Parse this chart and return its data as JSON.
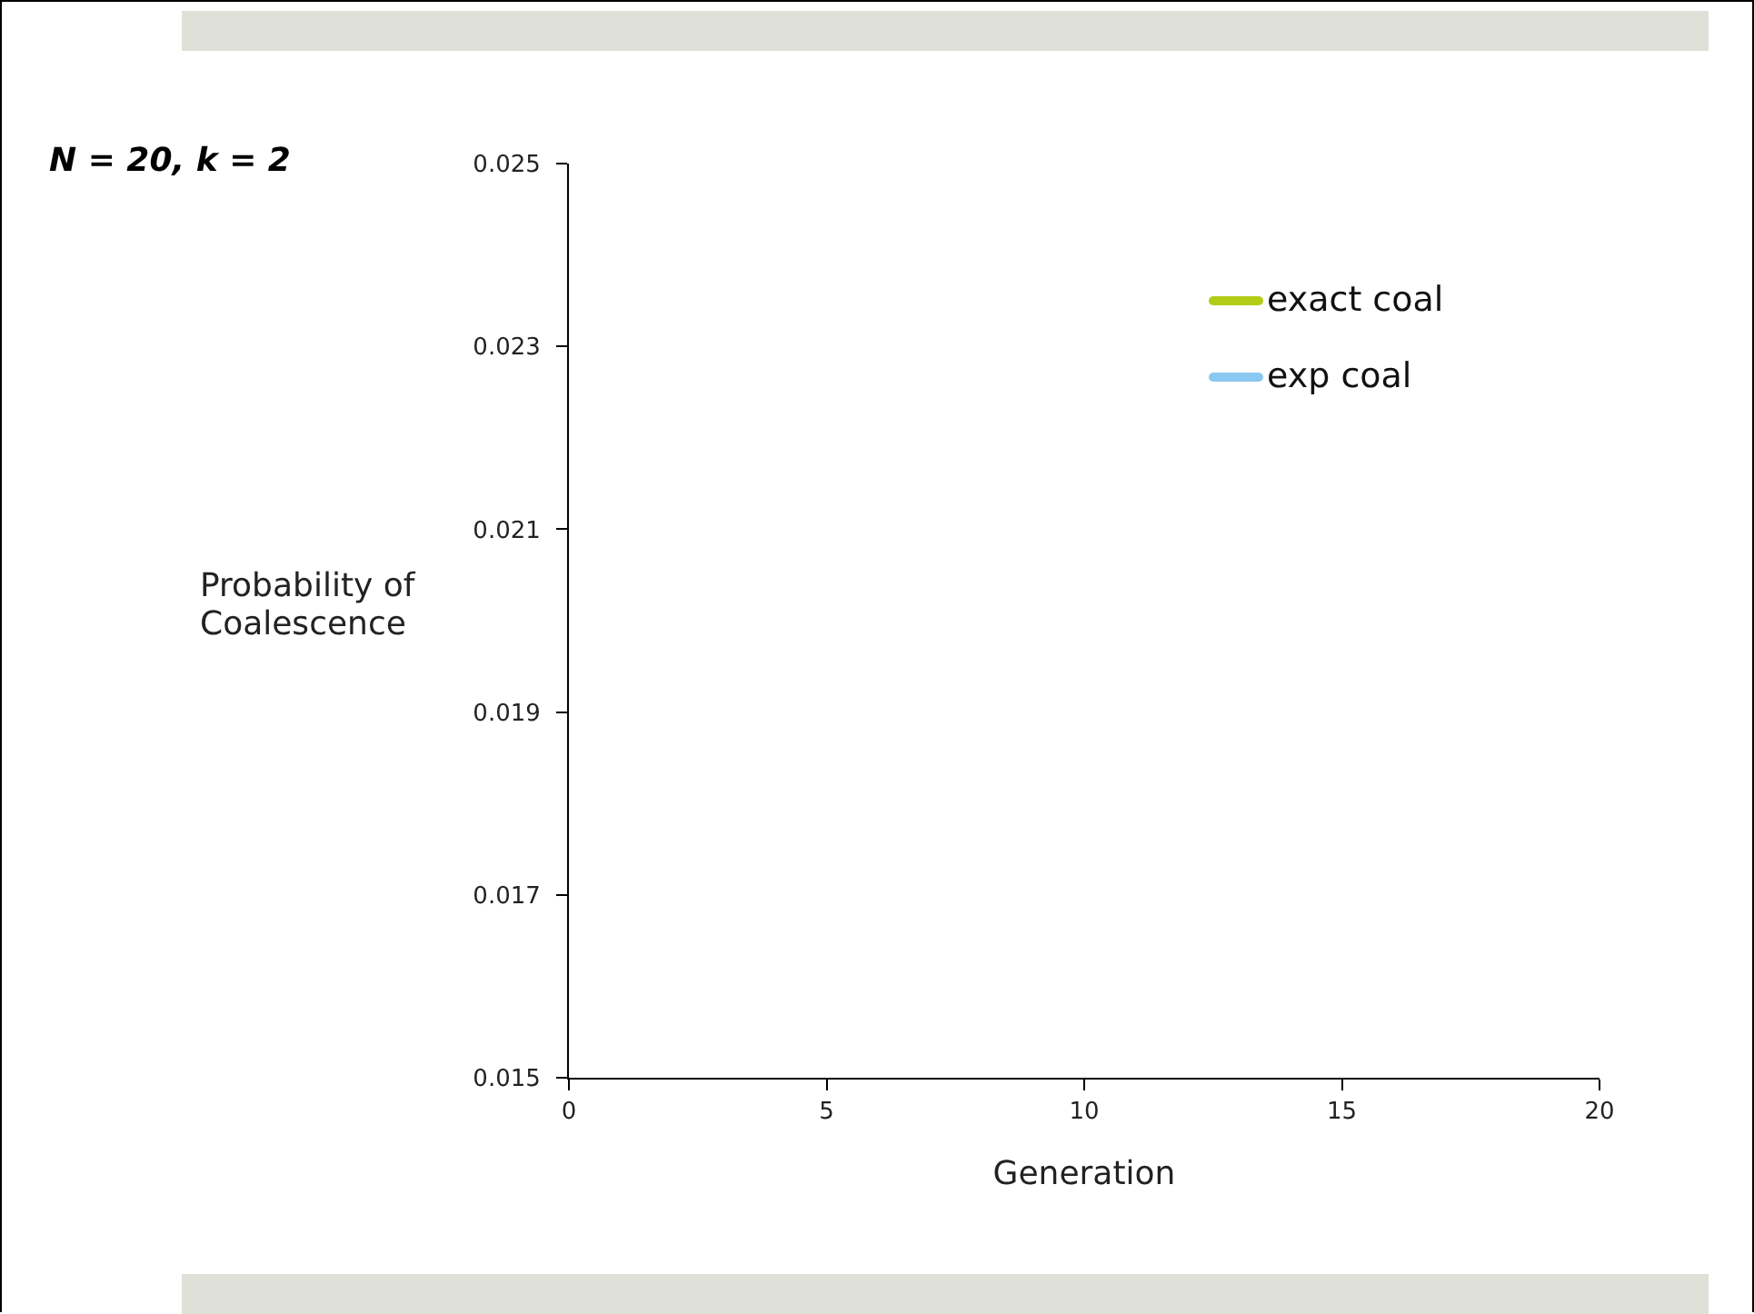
{
  "chart_data": {
    "type": "line",
    "title": "N = 20, k = 2",
    "xlabel": "Generation",
    "ylabel": "Probability of Coalescence",
    "series": [
      {
        "name": "exact coal",
        "color": "#b2cc16",
        "values": [
          null,
          null,
          null,
          null,
          null
        ]
      },
      {
        "name": "exp coal",
        "color": "#89c8f0",
        "values": [
          null,
          null,
          null,
          null,
          null
        ]
      }
    ],
    "categories": [
      "0",
      "5",
      "10",
      "15",
      "20"
    ],
    "ylim": [
      0.015,
      0.025
    ],
    "yticks": [
      0.015,
      0.017,
      0.019,
      0.021,
      0.023,
      0.025
    ],
    "grid": false,
    "legend": "top right",
    "marker": "none",
    "line_style": "solid"
  }
}
